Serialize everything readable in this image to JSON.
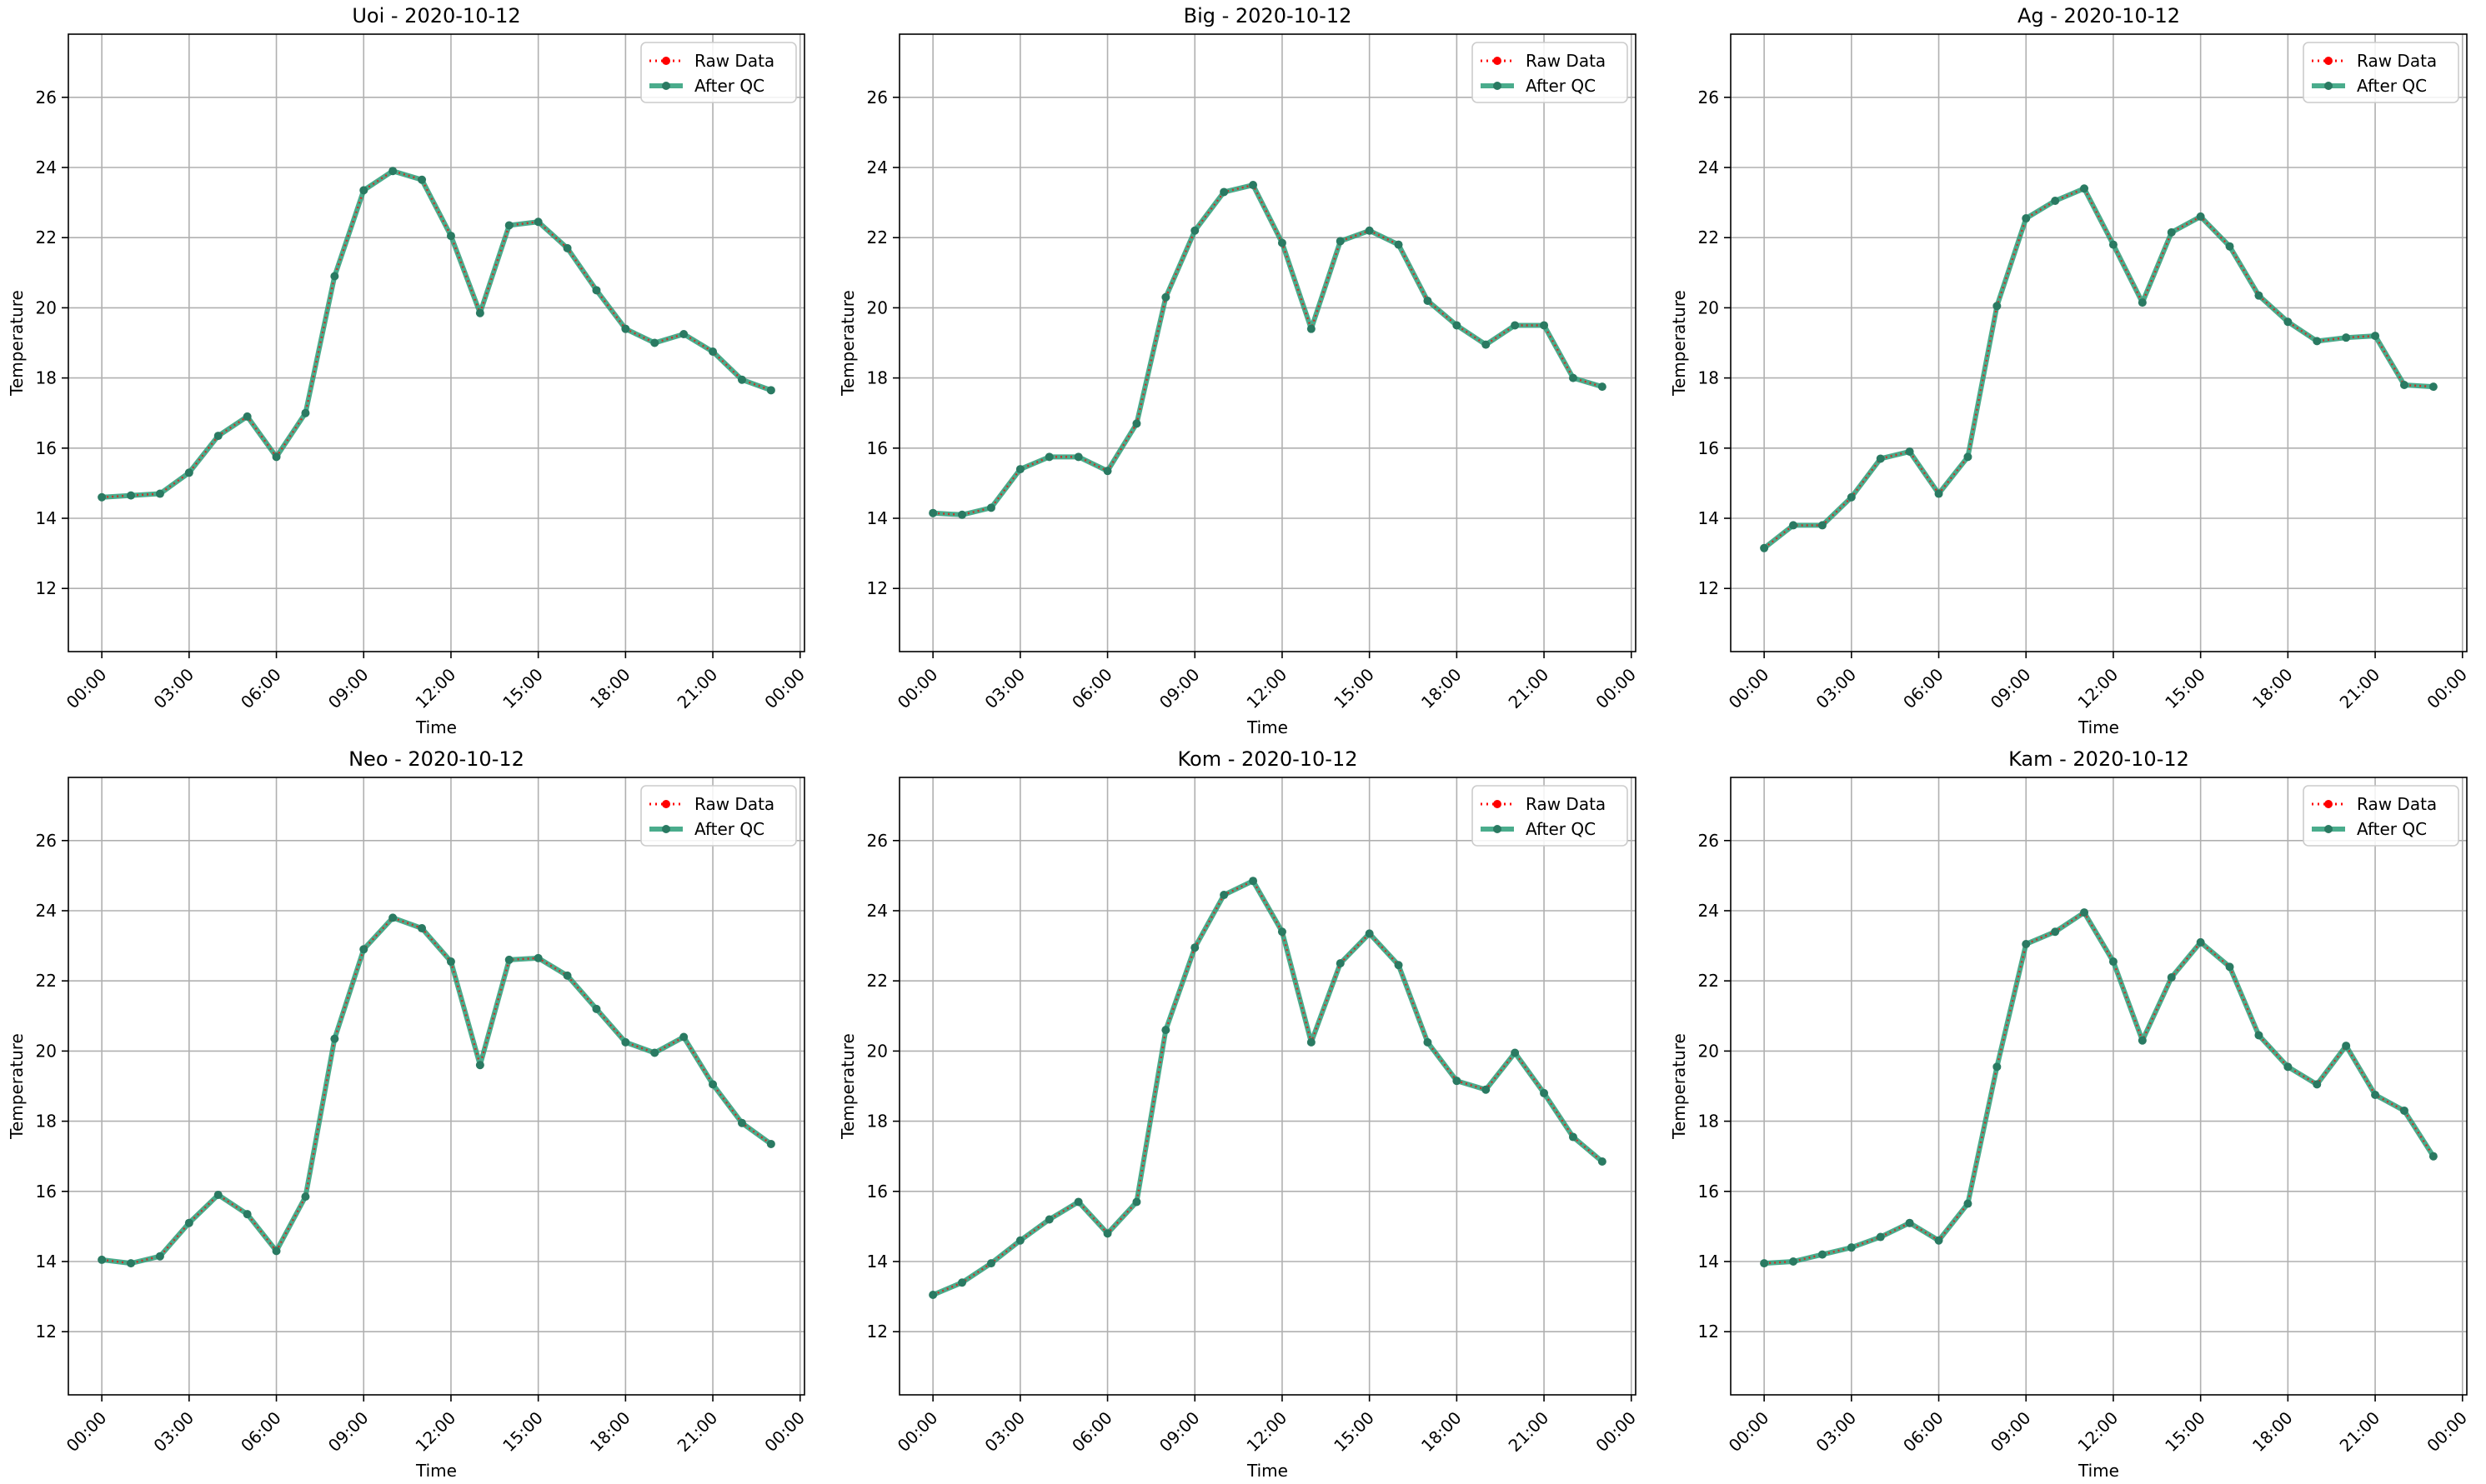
{
  "figure": {
    "legend_entries": [
      "Raw Data",
      "After QC"
    ],
    "colors": {
      "raw": "#ff0000",
      "qc": "#2a9d78",
      "qc_marker": "#2a7a62",
      "grid": "#b0b0b0"
    }
  },
  "chart_data": [
    {
      "type": "line",
      "title": "Uoi - 2020-10-12",
      "xlabel": "Time",
      "ylabel": "Temperature",
      "x_ticks": [
        "00:00",
        "03:00",
        "06:00",
        "09:00",
        "12:00",
        "15:00",
        "18:00",
        "21:00",
        "00:00"
      ],
      "y_ticks": [
        "12",
        "14",
        "16",
        "18",
        "20",
        "22",
        "24",
        "26"
      ],
      "xlim_hours": [
        -1.15,
        24.15
      ],
      "ylim": [
        10.2,
        27.8
      ],
      "grid": true,
      "legend_position": "top-right",
      "x_hours": [
        0,
        1,
        2,
        3,
        4,
        5,
        6,
        7,
        8,
        9,
        10,
        11,
        12,
        13,
        14,
        15,
        16,
        17,
        18,
        19,
        20,
        21,
        22,
        23
      ],
      "series": [
        {
          "name": "Raw Data",
          "values": [
            14.6,
            14.65,
            14.7,
            15.3,
            16.35,
            16.9,
            15.75,
            17.0,
            20.9,
            23.35,
            23.9,
            23.65,
            22.05,
            19.85,
            22.35,
            22.45,
            21.7,
            20.5,
            19.4,
            19.0,
            19.25,
            18.75,
            17.95,
            17.65
          ]
        },
        {
          "name": "After QC",
          "values": [
            14.6,
            14.65,
            14.7,
            15.3,
            16.35,
            16.9,
            15.75,
            17.0,
            20.9,
            23.35,
            23.9,
            23.65,
            22.05,
            19.85,
            22.35,
            22.45,
            21.7,
            20.5,
            19.4,
            19.0,
            19.25,
            18.75,
            17.95,
            17.65
          ]
        }
      ]
    },
    {
      "type": "line",
      "title": "Big - 2020-10-12",
      "xlabel": "Time",
      "ylabel": "Temperature",
      "x_ticks": [
        "00:00",
        "03:00",
        "06:00",
        "09:00",
        "12:00",
        "15:00",
        "18:00",
        "21:00",
        "00:00"
      ],
      "y_ticks": [
        "12",
        "14",
        "16",
        "18",
        "20",
        "22",
        "24",
        "26"
      ],
      "xlim_hours": [
        -1.15,
        24.15
      ],
      "ylim": [
        10.2,
        27.8
      ],
      "grid": true,
      "legend_position": "top-right",
      "x_hours": [
        0,
        1,
        2,
        3,
        4,
        5,
        6,
        7,
        8,
        9,
        10,
        11,
        12,
        13,
        14,
        15,
        16,
        17,
        18,
        19,
        20,
        21,
        22,
        23
      ],
      "series": [
        {
          "name": "Raw Data",
          "values": [
            14.15,
            14.1,
            14.3,
            15.4,
            15.75,
            15.75,
            15.35,
            16.7,
            20.3,
            22.2,
            23.3,
            23.5,
            21.85,
            19.4,
            21.9,
            22.2,
            21.8,
            20.2,
            19.5,
            18.95,
            19.5,
            19.5,
            18.0,
            17.75
          ]
        },
        {
          "name": "After QC",
          "values": [
            14.15,
            14.1,
            14.3,
            15.4,
            15.75,
            15.75,
            15.35,
            16.7,
            20.3,
            22.2,
            23.3,
            23.5,
            21.85,
            19.4,
            21.9,
            22.2,
            21.8,
            20.2,
            19.5,
            18.95,
            19.5,
            19.5,
            18.0,
            17.75
          ]
        }
      ]
    },
    {
      "type": "line",
      "title": "Ag - 2020-10-12",
      "xlabel": "Time",
      "ylabel": "Temperature",
      "x_ticks": [
        "00:00",
        "03:00",
        "06:00",
        "09:00",
        "12:00",
        "15:00",
        "18:00",
        "21:00",
        "00:00"
      ],
      "y_ticks": [
        "12",
        "14",
        "16",
        "18",
        "20",
        "22",
        "24",
        "26"
      ],
      "xlim_hours": [
        -1.15,
        24.15
      ],
      "ylim": [
        10.2,
        27.8
      ],
      "grid": true,
      "legend_position": "top-right",
      "x_hours": [
        0,
        1,
        2,
        3,
        4,
        5,
        6,
        7,
        8,
        9,
        10,
        11,
        12,
        13,
        14,
        15,
        16,
        17,
        18,
        19,
        20,
        21,
        22,
        23
      ],
      "series": [
        {
          "name": "Raw Data",
          "values": [
            13.15,
            13.8,
            13.8,
            14.6,
            15.7,
            15.9,
            14.7,
            15.75,
            20.05,
            22.55,
            23.05,
            23.4,
            21.8,
            20.15,
            22.15,
            22.6,
            21.75,
            20.35,
            19.6,
            19.05,
            19.15,
            19.2,
            17.8,
            17.75
          ]
        },
        {
          "name": "After QC",
          "values": [
            13.15,
            13.8,
            13.8,
            14.6,
            15.7,
            15.9,
            14.7,
            15.75,
            20.05,
            22.55,
            23.05,
            23.4,
            21.8,
            20.15,
            22.15,
            22.6,
            21.75,
            20.35,
            19.6,
            19.05,
            19.15,
            19.2,
            17.8,
            17.75
          ]
        }
      ]
    },
    {
      "type": "line",
      "title": "Neo - 2020-10-12",
      "xlabel": "Time",
      "ylabel": "Temperature",
      "x_ticks": [
        "00:00",
        "03:00",
        "06:00",
        "09:00",
        "12:00",
        "15:00",
        "18:00",
        "21:00",
        "00:00"
      ],
      "y_ticks": [
        "12",
        "14",
        "16",
        "18",
        "20",
        "22",
        "24",
        "26"
      ],
      "xlim_hours": [
        -1.15,
        24.15
      ],
      "ylim": [
        10.2,
        27.8
      ],
      "grid": true,
      "legend_position": "top-right",
      "x_hours": [
        0,
        1,
        2,
        3,
        4,
        5,
        6,
        7,
        8,
        9,
        10,
        11,
        12,
        13,
        14,
        15,
        16,
        17,
        18,
        19,
        20,
        21,
        22,
        23
      ],
      "series": [
        {
          "name": "Raw Data",
          "values": [
            14.05,
            13.95,
            14.15,
            15.1,
            15.9,
            15.35,
            14.3,
            15.85,
            20.35,
            22.9,
            23.8,
            23.5,
            22.55,
            19.6,
            22.6,
            22.65,
            22.15,
            21.2,
            20.25,
            19.95,
            20.4,
            19.05,
            17.95,
            17.35
          ]
        },
        {
          "name": "After QC",
          "values": [
            14.05,
            13.95,
            14.15,
            15.1,
            15.9,
            15.35,
            14.3,
            15.85,
            20.35,
            22.9,
            23.8,
            23.5,
            22.55,
            19.6,
            22.6,
            22.65,
            22.15,
            21.2,
            20.25,
            19.95,
            20.4,
            19.05,
            17.95,
            17.35
          ]
        }
      ]
    },
    {
      "type": "line",
      "title": "Kom - 2020-10-12",
      "xlabel": "Time",
      "ylabel": "Temperature",
      "x_ticks": [
        "00:00",
        "03:00",
        "06:00",
        "09:00",
        "12:00",
        "15:00",
        "18:00",
        "21:00",
        "00:00"
      ],
      "y_ticks": [
        "12",
        "14",
        "16",
        "18",
        "20",
        "22",
        "24",
        "26"
      ],
      "xlim_hours": [
        -1.15,
        24.15
      ],
      "ylim": [
        10.2,
        27.8
      ],
      "grid": true,
      "legend_position": "top-right",
      "x_hours": [
        0,
        1,
        2,
        3,
        4,
        5,
        6,
        7,
        8,
        9,
        10,
        11,
        12,
        13,
        14,
        15,
        16,
        17,
        18,
        19,
        20,
        21,
        22,
        23
      ],
      "series": [
        {
          "name": "Raw Data",
          "values": [
            13.05,
            13.4,
            13.95,
            14.6,
            15.2,
            15.7,
            14.8,
            15.7,
            20.6,
            22.95,
            24.45,
            24.85,
            23.4,
            20.25,
            22.5,
            23.35,
            22.45,
            20.25,
            19.15,
            18.9,
            19.95,
            18.8,
            17.55,
            16.85
          ]
        },
        {
          "name": "After QC",
          "values": [
            13.05,
            13.4,
            13.95,
            14.6,
            15.2,
            15.7,
            14.8,
            15.7,
            20.6,
            22.95,
            24.45,
            24.85,
            23.4,
            20.25,
            22.5,
            23.35,
            22.45,
            20.25,
            19.15,
            18.9,
            19.95,
            18.8,
            17.55,
            16.85
          ]
        }
      ]
    },
    {
      "type": "line",
      "title": "Kam - 2020-10-12",
      "xlabel": "Time",
      "ylabel": "Temperature",
      "x_ticks": [
        "00:00",
        "03:00",
        "06:00",
        "09:00",
        "12:00",
        "15:00",
        "18:00",
        "21:00",
        "00:00"
      ],
      "y_ticks": [
        "12",
        "14",
        "16",
        "18",
        "20",
        "22",
        "24",
        "26"
      ],
      "xlim_hours": [
        -1.15,
        24.15
      ],
      "ylim": [
        10.2,
        27.8
      ],
      "grid": true,
      "legend_position": "top-right",
      "x_hours": [
        0,
        1,
        2,
        3,
        4,
        5,
        6,
        7,
        8,
        9,
        10,
        11,
        12,
        13,
        14,
        15,
        16,
        17,
        18,
        19,
        20,
        21,
        22,
        23
      ],
      "series": [
        {
          "name": "Raw Data",
          "values": [
            13.95,
            14.0,
            14.2,
            14.4,
            14.7,
            15.1,
            14.6,
            15.65,
            19.55,
            23.05,
            23.4,
            23.95,
            22.55,
            20.3,
            22.1,
            23.1,
            22.4,
            20.45,
            19.55,
            19.05,
            20.15,
            18.75,
            18.3,
            17.0
          ]
        },
        {
          "name": "After QC",
          "values": [
            13.95,
            14.0,
            14.2,
            14.4,
            14.7,
            15.1,
            14.6,
            15.65,
            19.55,
            23.05,
            23.4,
            23.95,
            22.55,
            20.3,
            22.1,
            23.1,
            22.4,
            20.45,
            19.55,
            19.05,
            20.15,
            18.75,
            18.3,
            17.0
          ]
        }
      ]
    }
  ]
}
